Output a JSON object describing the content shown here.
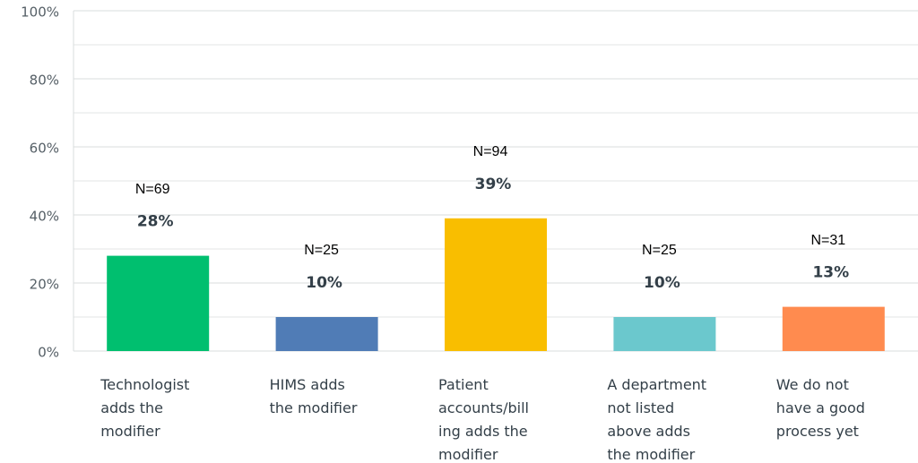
{
  "chart_data": {
    "type": "bar",
    "categories": [
      [
        "Technologist",
        "adds the",
        "modifier"
      ],
      [
        "HIMS adds",
        "the modifier"
      ],
      [
        "Patient",
        "accounts/bill",
        "ing adds the",
        "modifier"
      ],
      [
        "A department",
        "not listed",
        "above adds",
        "the modifier"
      ],
      [
        "We do not",
        "have a good",
        "process yet"
      ]
    ],
    "values": [
      28,
      10,
      39,
      10,
      13
    ],
    "value_labels": [
      "28%",
      "10%",
      "39%",
      "10%",
      "13%"
    ],
    "n_labels": [
      "N=69",
      "N=25",
      "N=94",
      "N=25",
      "N=31"
    ],
    "colors": [
      "#00bf6f",
      "#507cb6",
      "#f9be00",
      "#6bc8cd",
      "#ff8b4f"
    ],
    "ylim": [
      0,
      100
    ],
    "yticks": [
      {
        "value": 0,
        "label": "0%"
      },
      {
        "value": 20,
        "label": "20%"
      },
      {
        "value": 40,
        "label": "40%"
      },
      {
        "value": 60,
        "label": "60%"
      },
      {
        "value": 80,
        "label": "80%"
      },
      {
        "value": 100,
        "label": "100%"
      }
    ],
    "minor_yticks": [
      10,
      30,
      50,
      70,
      90
    ],
    "grid": true
  }
}
